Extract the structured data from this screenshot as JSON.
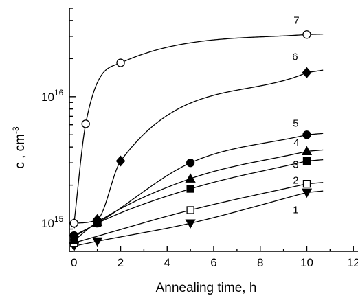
{
  "chart_data": {
    "type": "scatter",
    "title": "",
    "xlabel": "Annealing time, h",
    "ylabel": "c , cm",
    "ylabel_superscript": "-3",
    "xlim": [
      -0.2,
      12.2
    ],
    "ylim": [
      600000000000000,
      50000000000000000
    ],
    "yscale": "log",
    "x_ticks": [
      0,
      2,
      4,
      6,
      8,
      10,
      12
    ],
    "y_tick_labels": [
      {
        "base": "10",
        "exp": "15",
        "value": 1000000000000000
      },
      {
        "base": "10",
        "exp": "16",
        "value": 10000000000000000
      }
    ],
    "grid": false,
    "legend": "none",
    "series": [
      {
        "name": "1",
        "marker": "triangle-down",
        "filled": true,
        "x": [
          0,
          1,
          5,
          10
        ],
        "y": [
          660000000000000,
          720000000000000,
          1000000000000000,
          1750000000000000
        ]
      },
      {
        "name": "2",
        "marker": "square",
        "filled": false,
        "x": [
          0,
          5,
          10
        ],
        "y": [
          700000000000000,
          1270000000000000,
          2050000000000000
        ]
      },
      {
        "name": "3",
        "marker": "square",
        "filled": true,
        "x": [
          0,
          1,
          5,
          10
        ],
        "y": [
          780000000000000,
          1000000000000000,
          1870000000000000,
          3100000000000000
        ]
      },
      {
        "name": "4",
        "marker": "triangle-up",
        "filled": true,
        "x": [
          0,
          1,
          5,
          10
        ],
        "y": [
          730000000000000,
          1020000000000000,
          2250000000000000,
          3700000000000000
        ]
      },
      {
        "name": "5",
        "marker": "circle",
        "filled": true,
        "x": [
          0,
          1,
          5,
          10
        ],
        "y": [
          800000000000000,
          1000000000000000,
          3000000000000000,
          5000000000000000
        ]
      },
      {
        "name": "6",
        "marker": "diamond",
        "filled": true,
        "x": [
          0,
          1,
          2,
          10
        ],
        "y": [
          1000000000000000,
          1070000000000000,
          3100000000000000,
          15500000000000000
        ]
      },
      {
        "name": "7",
        "marker": "circle",
        "filled": false,
        "x": [
          0,
          0.5,
          2,
          10
        ],
        "y": [
          1000000000000000,
          6100000000000000,
          18500000000000000,
          31000000000000000
        ]
      }
    ]
  }
}
